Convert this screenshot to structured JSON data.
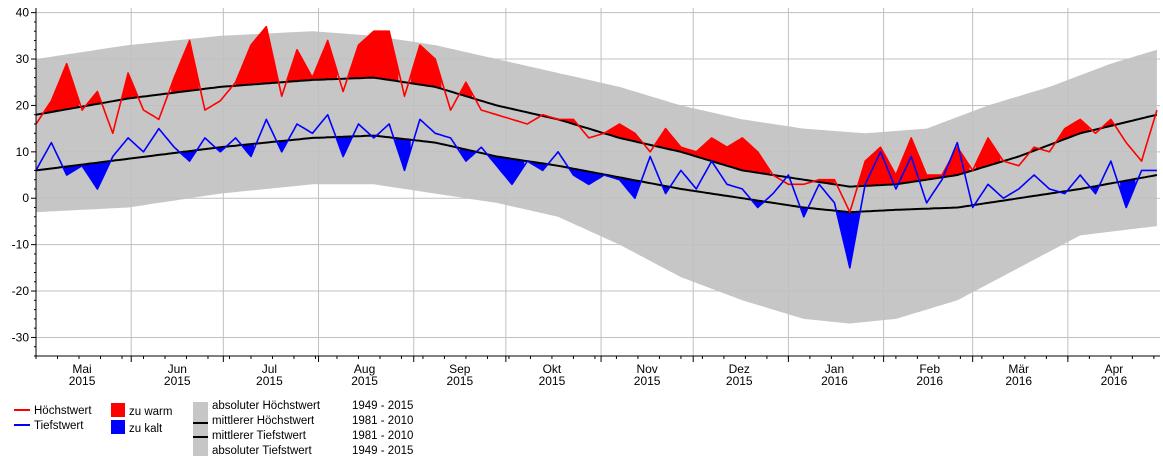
{
  "chart_data": {
    "type": "area",
    "title": "",
    "xlabel": "",
    "ylabel": "",
    "ylim": [
      -34,
      41
    ],
    "y_ticks": [
      40,
      30,
      20,
      10,
      0,
      -10,
      -20,
      -30
    ],
    "grid": true,
    "legend_position": "bottom-left",
    "month_labels": [
      {
        "month": "Mai",
        "year": "2015",
        "day": 15
      },
      {
        "month": "Jun",
        "year": "2015",
        "day": 46
      },
      {
        "month": "Jul",
        "year": "2015",
        "day": 76
      },
      {
        "month": "Aug",
        "year": "2015",
        "day": 107
      },
      {
        "month": "Sep",
        "year": "2015",
        "day": 138
      },
      {
        "month": "Okt",
        "year": "2015",
        "day": 168
      },
      {
        "month": "Nov",
        "year": "2015",
        "day": 199
      },
      {
        "month": "Dez",
        "year": "2015",
        "day": 229
      },
      {
        "month": "Jan",
        "year": "2016",
        "day": 260
      },
      {
        "month": "Feb",
        "year": "2016",
        "day": 291
      },
      {
        "month": "Mär",
        "year": "2016",
        "day": 320
      },
      {
        "month": "Apr",
        "year": "2016",
        "day": 351
      }
    ],
    "month_boundaries": [
      31,
      61,
      92,
      123,
      153,
      184,
      214,
      245,
      276,
      305,
      336
    ],
    "x_days": 366,
    "colors": {
      "hoechst": "#ff0000",
      "tiefst": "#0000ff",
      "zu_warm": "#ff0000",
      "zu_kalt": "#0000ff",
      "band": "#c6c6c6",
      "mean": "#000000",
      "grid": "#c0c0c0"
    },
    "legend": {
      "hoechstwert": "Höchstwert",
      "tiefstwert": "Tiefstwert",
      "zu_warm": "zu warm",
      "zu_kalt": "zu kalt",
      "abs_max": "absoluter Höchstwert",
      "abs_max_period": "1949 - 2015",
      "mean_max": "mittlerer Höchstwert",
      "mean_max_period": "1981 - 2010",
      "mean_min": "mittlerer Tiefstwert",
      "mean_min_period": "1981 - 2010",
      "abs_min": "absoluter Tiefstwert",
      "abs_min_period": "1949 - 2015"
    },
    "series": [
      {
        "name": "Höchstwert",
        "x": [
          0,
          5,
          10,
          15,
          20,
          25,
          30,
          35,
          40,
          45,
          50,
          55,
          60,
          65,
          70,
          75,
          80,
          85,
          90,
          95,
          100,
          105,
          110,
          115,
          120,
          125,
          130,
          135,
          140,
          145,
          150,
          155,
          160,
          165,
          170,
          175,
          180,
          185,
          190,
          195,
          200,
          205,
          210,
          215,
          220,
          225,
          230,
          235,
          240,
          245,
          250,
          255,
          260,
          265,
          270,
          275,
          280,
          285,
          290,
          295,
          300,
          305,
          310,
          315,
          320,
          325,
          330,
          335,
          340,
          345,
          350,
          355,
          360,
          365
        ],
        "values": [
          16,
          21,
          29,
          19,
          23,
          14,
          27,
          19,
          17,
          26,
          34,
          19,
          21,
          25,
          33,
          37,
          22,
          32,
          26,
          34,
          23,
          33,
          36,
          36,
          22,
          33,
          30,
          19,
          25,
          19,
          18,
          17,
          16,
          18,
          17,
          17,
          13,
          14,
          16,
          14,
          10,
          15,
          11,
          10,
          13,
          11,
          13,
          10,
          5,
          3,
          3,
          4,
          4,
          -3,
          8,
          11,
          5,
          13,
          5,
          5,
          11,
          6,
          13,
          8,
          7,
          11,
          10,
          15,
          17,
          14,
          17,
          12,
          8,
          19
        ]
      },
      {
        "name": "Tiefstwert",
        "x": [
          0,
          5,
          10,
          15,
          20,
          25,
          30,
          35,
          40,
          45,
          50,
          55,
          60,
          65,
          70,
          75,
          80,
          85,
          90,
          95,
          100,
          105,
          110,
          115,
          120,
          125,
          130,
          135,
          140,
          145,
          150,
          155,
          160,
          165,
          170,
          175,
          180,
          185,
          190,
          195,
          200,
          205,
          210,
          215,
          220,
          225,
          230,
          235,
          240,
          245,
          250,
          255,
          260,
          265,
          270,
          275,
          280,
          285,
          290,
          295,
          300,
          305,
          310,
          315,
          320,
          325,
          330,
          335,
          340,
          345,
          350,
          355,
          360,
          365
        ],
        "values": [
          6,
          12,
          5,
          7,
          2,
          9,
          13,
          10,
          15,
          11,
          8,
          13,
          10,
          13,
          9,
          17,
          10,
          16,
          14,
          18,
          9,
          16,
          13,
          16,
          6,
          17,
          14,
          13,
          8,
          11,
          7,
          3,
          8,
          6,
          10,
          5,
          3,
          5,
          4,
          0,
          9,
          1,
          6,
          2,
          8,
          3,
          2,
          -2,
          1,
          5,
          -4,
          3,
          -1,
          -15,
          3,
          10,
          2,
          9,
          -1,
          4,
          12,
          -2,
          3,
          0,
          2,
          5,
          2,
          1,
          5,
          1,
          8,
          -2,
          6,
          6
        ]
      },
      {
        "name": "mittlerer Höchstwert",
        "x": [
          0,
          30,
          60,
          90,
          110,
          130,
          150,
          170,
          190,
          210,
          230,
          250,
          265,
          280,
          300,
          320,
          340,
          365
        ],
        "values": [
          18,
          21.5,
          24,
          25.5,
          26,
          24,
          20,
          17,
          13,
          10,
          6,
          4,
          2.5,
          3,
          5,
          9,
          14,
          18
        ]
      },
      {
        "name": "mittlerer Tiefstwert",
        "x": [
          0,
          30,
          60,
          90,
          110,
          130,
          150,
          170,
          190,
          210,
          230,
          250,
          265,
          280,
          300,
          320,
          340,
          365
        ],
        "values": [
          6,
          8.5,
          11,
          13,
          13.5,
          12,
          9,
          7,
          4.5,
          2,
          0,
          -2,
          -3,
          -2.5,
          -2,
          0,
          2,
          5
        ]
      },
      {
        "name": "absoluter Höchstwert",
        "x": [
          0,
          30,
          60,
          90,
          110,
          130,
          150,
          170,
          190,
          210,
          230,
          250,
          270,
          290,
          310,
          330,
          350,
          365
        ],
        "values": [
          30,
          33,
          35,
          36,
          35,
          33,
          30,
          27,
          24,
          20,
          17,
          15,
          14,
          15,
          20,
          24,
          29,
          32
        ]
      },
      {
        "name": "absoluter Tiefstwert",
        "x": [
          0,
          30,
          60,
          90,
          110,
          130,
          150,
          170,
          190,
          210,
          230,
          250,
          265,
          280,
          300,
          320,
          340,
          365
        ],
        "values": [
          -3,
          -2,
          1,
          3,
          3,
          1,
          -1,
          -4,
          -10,
          -17,
          -22,
          -26,
          -27,
          -26,
          -22,
          -15,
          -8,
          -6
        ]
      }
    ]
  }
}
